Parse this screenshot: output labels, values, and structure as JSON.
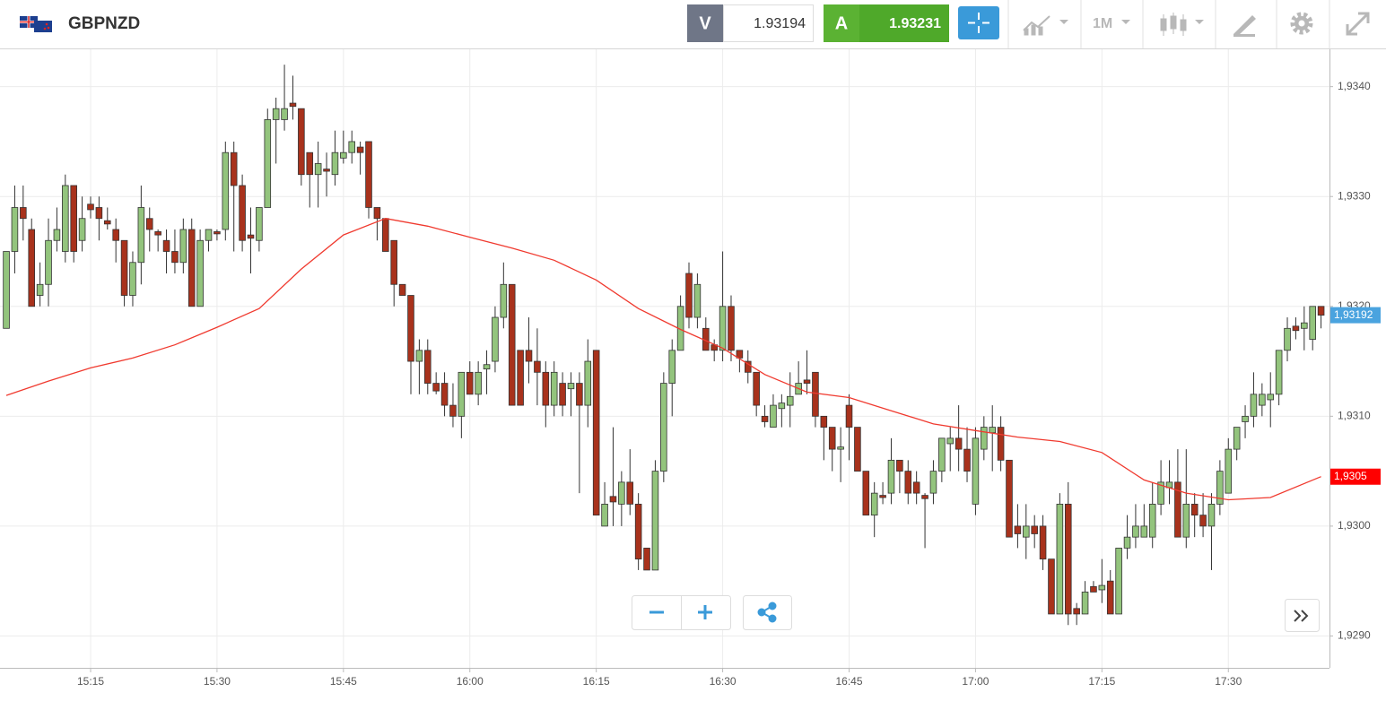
{
  "toolbar": {
    "sell_label": "V",
    "sell": 1.93194,
    "buy_label": "A",
    "buy": 1.93231,
    "timeframe": "1M"
  },
  "chart_data": {
    "type": "candlestick",
    "title": "GBPNZD",
    "x": [
      "15:05",
      "15:06",
      "15:07",
      "15:08",
      "15:09",
      "15:10",
      "15:11",
      "15:12",
      "15:13",
      "15:14",
      "15:15",
      "15:16",
      "15:17",
      "15:18",
      "15:19",
      "15:20",
      "15:21",
      "15:22",
      "15:23",
      "15:24",
      "15:25",
      "15:26",
      "15:27",
      "15:28",
      "15:29",
      "15:30",
      "15:31",
      "15:32",
      "15:33",
      "15:34",
      "15:35",
      "15:36",
      "15:37",
      "15:38",
      "15:39",
      "15:40",
      "15:41",
      "15:42",
      "15:43",
      "15:44",
      "15:45",
      "15:46",
      "15:47",
      "15:48",
      "15:49",
      "15:50",
      "15:51",
      "15:52",
      "15:53",
      "15:54",
      "15:55",
      "15:56",
      "15:57",
      "15:58",
      "15:59",
      "16:00",
      "16:01",
      "16:02",
      "16:03",
      "16:04",
      "16:05",
      "16:06",
      "16:07",
      "16:08",
      "16:09",
      "16:10",
      "16:11",
      "16:12",
      "16:13",
      "16:14",
      "16:15",
      "16:16",
      "16:17",
      "16:18",
      "16:19",
      "16:20",
      "16:21",
      "16:22",
      "16:23",
      "16:24",
      "16:25",
      "16:26",
      "16:27",
      "16:28",
      "16:29",
      "16:30",
      "16:31",
      "16:32",
      "16:33",
      "16:34",
      "16:35",
      "16:36",
      "16:37",
      "16:38",
      "16:39",
      "16:40",
      "16:41",
      "16:42",
      "16:43",
      "16:44",
      "16:45",
      "16:46",
      "16:47",
      "16:48",
      "16:49",
      "16:50",
      "16:51",
      "16:52",
      "16:53",
      "16:54",
      "16:55",
      "16:56",
      "16:57",
      "16:58",
      "16:59",
      "17:00",
      "17:01",
      "17:02",
      "17:03",
      "17:04",
      "17:05",
      "17:06",
      "17:07",
      "17:08",
      "17:09",
      "17:10",
      "17:11",
      "17:12",
      "17:13",
      "17:14",
      "17:15",
      "17:16",
      "17:17",
      "17:18",
      "17:19",
      "17:20",
      "17:21",
      "17:22",
      "17:23",
      "17:24",
      "17:25",
      "17:26",
      "17:27",
      "17:28",
      "17:29",
      "17:30",
      "17:31",
      "17:32",
      "17:33",
      "17:34",
      "17:35",
      "17:36",
      "17:37",
      "17:38",
      "17:39",
      "17:40",
      "17:41"
    ],
    "open": [
      1.9318,
      1.9325,
      1.9329,
      1.9327,
      1.9321,
      1.9322,
      1.9326,
      1.9325,
      1.9331,
      1.9326,
      1.93293,
      1.9329,
      1.93278,
      1.9327,
      1.9326,
      1.9321,
      1.9324,
      1.9328,
      1.93268,
      1.9326,
      1.9325,
      1.9324,
      1.9327,
      1.932,
      1.9326,
      1.93268,
      1.9327,
      1.9334,
      1.9331,
      1.93265,
      1.9326,
      1.9329,
      1.9337,
      1.9337,
      1.93385,
      1.9338,
      1.9334,
      1.9332,
      1.93325,
      1.9332,
      1.93335,
      1.9334,
      1.93345,
      1.9335,
      1.9329,
      1.9328,
      1.9326,
      1.9322,
      1.9321,
      1.9315,
      1.9316,
      1.9313,
      1.9313,
      1.9311,
      1.931,
      1.9314,
      1.9312,
      1.93143,
      1.9315,
      1.9319,
      1.9322,
      1.9316,
      1.9316,
      1.9315,
      1.9314,
      1.9311,
      1.9313,
      1.93125,
      1.9313,
      1.9311,
      1.9316,
      1.93,
      1.93027,
      1.9302,
      1.9304,
      1.9302,
      1.9298,
      1.9296,
      1.9305,
      1.9313,
      1.9316,
      1.9323,
      1.9319,
      1.9318,
      1.93165,
      1.9316,
      1.932,
      1.9316,
      1.9315,
      1.9314,
      1.931,
      1.9309,
      1.93107,
      1.9311,
      1.9312,
      1.93133,
      1.9314,
      1.931,
      1.9309,
      1.9307,
      1.9311,
      1.9309,
      1.9305,
      1.9301,
      1.93028,
      1.9303,
      1.9306,
      1.9305,
      1.9304,
      1.93028,
      1.9303,
      1.9305,
      1.93075,
      1.9308,
      1.9307,
      1.9302,
      1.9307,
      1.93085,
      1.9309,
      1.9306,
      1.93,
      1.9299,
      1.93,
      1.93,
      1.9297,
      1.9292,
      1.9302,
      1.92925,
      1.9292,
      1.92945,
      1.92942,
      1.9295,
      1.9292,
      1.9298,
      1.9299,
      1.9299,
      1.9299,
      1.9302,
      1.93035,
      1.9304,
      1.9299,
      1.9302,
      1.9301,
      1.93,
      1.9302,
      1.9303,
      1.9307,
      1.93095,
      1.931,
      1.9311,
      1.93115,
      1.9312,
      1.9316,
      1.93182,
      1.9318,
      1.9317,
      1.932
    ],
    "high": [
      1.9325,
      1.9331,
      1.9331,
      1.9328,
      1.9324,
      1.9328,
      1.9329,
      1.9332,
      1.9331,
      1.933,
      1.933,
      1.933,
      1.9329,
      1.9328,
      1.9326,
      1.9325,
      1.9331,
      1.9329,
      1.9327,
      1.9327,
      1.9327,
      1.9328,
      1.9328,
      1.9327,
      1.9327,
      1.9327,
      1.9335,
      1.9335,
      1.9332,
      1.9329,
      1.9329,
      1.9338,
      1.9339,
      1.9342,
      1.9341,
      1.9338,
      1.9334,
      1.9335,
      1.9334,
      1.9336,
      1.9336,
      1.9336,
      1.9335,
      1.9335,
      1.9329,
      1.9328,
      1.9326,
      1.9322,
      1.9321,
      1.9317,
      1.9317,
      1.9314,
      1.9314,
      1.9313,
      1.9314,
      1.9315,
      1.9315,
      1.9316,
      1.932,
      1.9324,
      1.9322,
      1.9316,
      1.9319,
      1.9318,
      1.9315,
      1.9315,
      1.9314,
      1.9314,
      1.9314,
      1.9317,
      1.9316,
      1.9304,
      1.9309,
      1.9305,
      1.9307,
      1.9303,
      1.9298,
      1.9306,
      1.9314,
      1.9317,
      1.9321,
      1.9324,
      1.9323,
      1.9319,
      1.9317,
      1.9325,
      1.9321,
      1.9316,
      1.9316,
      1.9314,
      1.9311,
      1.9312,
      1.9312,
      1.9314,
      1.9315,
      1.9316,
      1.9314,
      1.931,
      1.9309,
      1.9309,
      1.9312,
      1.9309,
      1.9305,
      1.9304,
      1.9304,
      1.9308,
      1.9306,
      1.9306,
      1.9305,
      1.9303,
      1.9306,
      1.9308,
      1.9309,
      1.9311,
      1.9309,
      1.9309,
      1.931,
      1.9311,
      1.931,
      1.9306,
      1.9302,
      1.9302,
      1.9301,
      1.9301,
      1.9297,
      1.9303,
      1.9304,
      1.9293,
      1.9295,
      1.9295,
      1.9297,
      1.9296,
      1.9298,
      1.9301,
      1.9302,
      1.9302,
      1.9304,
      1.9306,
      1.9306,
      1.9307,
      1.9307,
      1.9303,
      1.9303,
      1.9303,
      1.9306,
      1.9308,
      1.9309,
      1.9311,
      1.9314,
      1.9313,
      1.9314,
      1.9316,
      1.9319,
      1.9319,
      1.932,
      1.932,
      1.932
    ],
    "low": [
      1.9318,
      1.9323,
      1.9326,
      1.932,
      1.932,
      1.932,
      1.9325,
      1.9324,
      1.9324,
      1.9325,
      1.9328,
      1.9326,
      1.9327,
      1.9324,
      1.932,
      1.932,
      1.9322,
      1.9325,
      1.9325,
      1.9323,
      1.9323,
      1.9323,
      1.932,
      1.932,
      1.9325,
      1.9326,
      1.9326,
      1.9325,
      1.9325,
      1.9323,
      1.9325,
      1.9329,
      1.9333,
      1.9336,
      1.9337,
      1.9331,
      1.9329,
      1.9329,
      1.933,
      1.9331,
      1.9333,
      1.9333,
      1.9332,
      1.9328,
      1.9326,
      1.9325,
      1.932,
      1.9321,
      1.9312,
      1.9312,
      1.9312,
      1.9312,
      1.931,
      1.9309,
      1.9308,
      1.9312,
      1.9311,
      1.9312,
      1.9314,
      1.9318,
      1.9311,
      1.9311,
      1.9313,
      1.9311,
      1.9309,
      1.931,
      1.931,
      1.931,
      1.9303,
      1.9309,
      1.9301,
      1.93,
      1.93,
      1.93,
      1.9301,
      1.9296,
      1.9296,
      1.9296,
      1.9304,
      1.931,
      1.9316,
      1.9318,
      1.9318,
      1.9316,
      1.9315,
      1.9315,
      1.9315,
      1.9314,
      1.9313,
      1.931,
      1.9309,
      1.9309,
      1.9309,
      1.9309,
      1.9312,
      1.9312,
      1.9309,
      1.9306,
      1.9305,
      1.9304,
      1.9306,
      1.9305,
      1.9301,
      1.9299,
      1.9302,
      1.9302,
      1.9303,
      1.9302,
      1.9302,
      1.9298,
      1.9302,
      1.9304,
      1.9305,
      1.9305,
      1.9304,
      1.9301,
      1.9306,
      1.9305,
      1.9305,
      1.9299,
      1.9298,
      1.9297,
      1.9298,
      1.9296,
      1.9292,
      1.9292,
      1.9291,
      1.9291,
      1.9292,
      1.9294,
      1.9293,
      1.9292,
      1.9292,
      1.9297,
      1.9298,
      1.9299,
      1.9298,
      1.9301,
      1.9302,
      1.9299,
      1.9298,
      1.9299,
      1.9299,
      1.9296,
      1.9301,
      1.9303,
      1.9306,
      1.9308,
      1.9309,
      1.931,
      1.9309,
      1.9311,
      1.9315,
      1.9317,
      1.9316,
      1.9316,
      1.9318
    ],
    "close": [
      1.9325,
      1.9329,
      1.9328,
      1.932,
      1.9322,
      1.9326,
      1.9327,
      1.9331,
      1.9325,
      1.9328,
      1.93288,
      1.9328,
      1.93275,
      1.9326,
      1.9321,
      1.9324,
      1.9329,
      1.9327,
      1.93265,
      1.9325,
      1.9324,
      1.9327,
      1.932,
      1.9326,
      1.9327,
      1.93266,
      1.9334,
      1.9331,
      1.9326,
      1.93262,
      1.9329,
      1.9337,
      1.9338,
      1.9338,
      1.93382,
      1.9332,
      1.9332,
      1.9333,
      1.93323,
      1.9334,
      1.9334,
      1.9335,
      1.9334,
      1.9329,
      1.9328,
      1.9325,
      1.9322,
      1.9321,
      1.9315,
      1.9316,
      1.9313,
      1.93123,
      1.9311,
      1.931,
      1.9314,
      1.9312,
      1.9314,
      1.93147,
      1.9319,
      1.9322,
      1.9311,
      1.9311,
      1.9315,
      1.9314,
      1.9311,
      1.9314,
      1.9311,
      1.9313,
      1.9311,
      1.9315,
      1.9301,
      1.9302,
      1.93022,
      1.9304,
      1.9302,
      1.9297,
      1.9296,
      1.9305,
      1.9313,
      1.9316,
      1.932,
      1.9319,
      1.9322,
      1.9316,
      1.9316,
      1.932,
      1.9316,
      1.93153,
      1.9314,
      1.9311,
      1.93095,
      1.9311,
      1.93112,
      1.93118,
      1.9313,
      1.9313,
      1.931,
      1.9309,
      1.9307,
      1.93072,
      1.9309,
      1.9305,
      1.9301,
      1.9303,
      1.93026,
      1.9306,
      1.9305,
      1.9303,
      1.9303,
      1.93025,
      1.9305,
      1.9308,
      1.9308,
      1.9307,
      1.9305,
      1.9308,
      1.9309,
      1.9309,
      1.9306,
      1.9299,
      1.92993,
      1.93,
      1.92993,
      1.9297,
      1.9292,
      1.9302,
      1.9292,
      1.9292,
      1.9294,
      1.9294,
      1.92946,
      1.9292,
      1.9298,
      1.9299,
      1.93,
      1.93,
      1.9302,
      1.9304,
      1.9304,
      1.9299,
      1.9302,
      1.9301,
      1.93,
      1.9302,
      1.9305,
      1.9307,
      1.9309,
      1.931,
      1.9312,
      1.9312,
      1.9312,
      1.9316,
      1.9318,
      1.93178,
      1.93185,
      1.932,
      1.93192
    ],
    "up_color": "#93c47d",
    "down_color": "#a8321c",
    "moving_average": {
      "color": "#f03a2f",
      "x": [
        "15:05",
        "15:10",
        "15:15",
        "15:20",
        "15:25",
        "15:30",
        "15:35",
        "15:40",
        "15:45",
        "15:50",
        "15:55",
        "16:00",
        "16:05",
        "16:10",
        "16:15",
        "16:20",
        "16:25",
        "16:30",
        "16:35",
        "16:40",
        "16:45",
        "16:50",
        "16:55",
        "17:00",
        "17:05",
        "17:10",
        "17:15",
        "17:20",
        "17:25",
        "17:30",
        "17:35",
        "17:41"
      ],
      "values": [
        1.93119,
        1.93132,
        1.93144,
        1.93153,
        1.93165,
        1.93181,
        1.93198,
        1.93234,
        1.93265,
        1.9328,
        1.93273,
        1.93263,
        1.93253,
        1.93242,
        1.93224,
        1.93198,
        1.93179,
        1.93162,
        1.93138,
        1.93122,
        1.93117,
        1.93105,
        1.93093,
        1.93087,
        1.93081,
        1.93077,
        1.93067,
        1.93042,
        1.9303,
        1.93024,
        1.93026,
        1.93045
      ]
    },
    "ylim": [
      1.92871,
      1.93434
    ],
    "yticks": [
      {
        "value": 1.929,
        "label": "1,9290"
      },
      {
        "value": 1.93,
        "label": "1,9300"
      },
      {
        "value": 1.931,
        "label": "1,9310"
      },
      {
        "value": 1.932,
        "label": "1,9320"
      },
      {
        "value": 1.933,
        "label": "1,9330"
      },
      {
        "value": 1.934,
        "label": "1,9340"
      }
    ],
    "xticks": [
      "15:15",
      "15:30",
      "15:45",
      "16:00",
      "16:15",
      "16:30",
      "16:45",
      "17:00",
      "17:15",
      "17:30"
    ],
    "grid": true,
    "price_tag": {
      "value": 1.93192,
      "label": "1,93192",
      "color": "#4aa3df"
    },
    "ma_tag": {
      "value": 1.93045,
      "label": "1,9305",
      "color": "#ff0000"
    }
  }
}
